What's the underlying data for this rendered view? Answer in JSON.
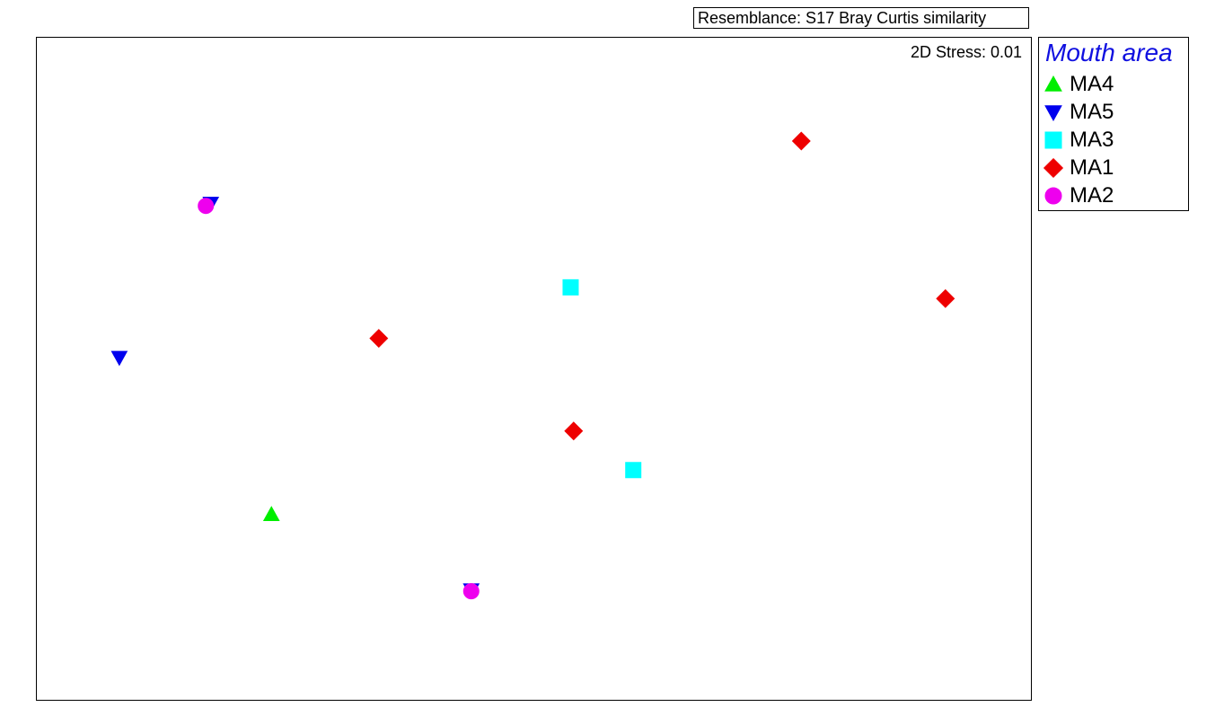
{
  "resemblance_label": "Resemblance: S17 Bray Curtis similarity",
  "stress_label": "2D Stress: 0.01",
  "legend_title": "Mouth area",
  "legend_title_color": "#1010e0",
  "groups": [
    {
      "name": "MA4",
      "shape": "triangle-up",
      "color": "#00ee00"
    },
    {
      "name": "MA5",
      "shape": "triangle-down",
      "color": "#0000ee"
    },
    {
      "name": "MA3",
      "shape": "square",
      "color": "#00ffff"
    },
    {
      "name": "MA1",
      "shape": "diamond",
      "color": "#ee0000"
    },
    {
      "name": "MA2",
      "shape": "circle",
      "color": "#ee00ee"
    }
  ],
  "chart_data": {
    "type": "scatter",
    "title": "",
    "xlabel": "",
    "ylabel": "",
    "grid": false,
    "legend_position": "right",
    "xlim": [
      0,
      100
    ],
    "ylim": [
      0,
      100
    ],
    "series": [
      {
        "name": "MA4",
        "points": [
          [
            23.6,
            28.0
          ]
        ]
      },
      {
        "name": "MA5",
        "points": [
          [
            17.5,
            75.0
          ],
          [
            8.3,
            51.7
          ],
          [
            43.7,
            16.6
          ]
        ]
      },
      {
        "name": "MA3",
        "points": [
          [
            53.7,
            62.3
          ],
          [
            60.0,
            34.7
          ]
        ]
      },
      {
        "name": "MA1",
        "points": [
          [
            76.9,
            84.4
          ],
          [
            91.4,
            60.6
          ],
          [
            34.4,
            54.6
          ],
          [
            54.0,
            40.6
          ]
        ]
      },
      {
        "name": "MA2",
        "points": [
          [
            17.0,
            74.6
          ],
          [
            43.7,
            16.4
          ]
        ]
      }
    ]
  }
}
